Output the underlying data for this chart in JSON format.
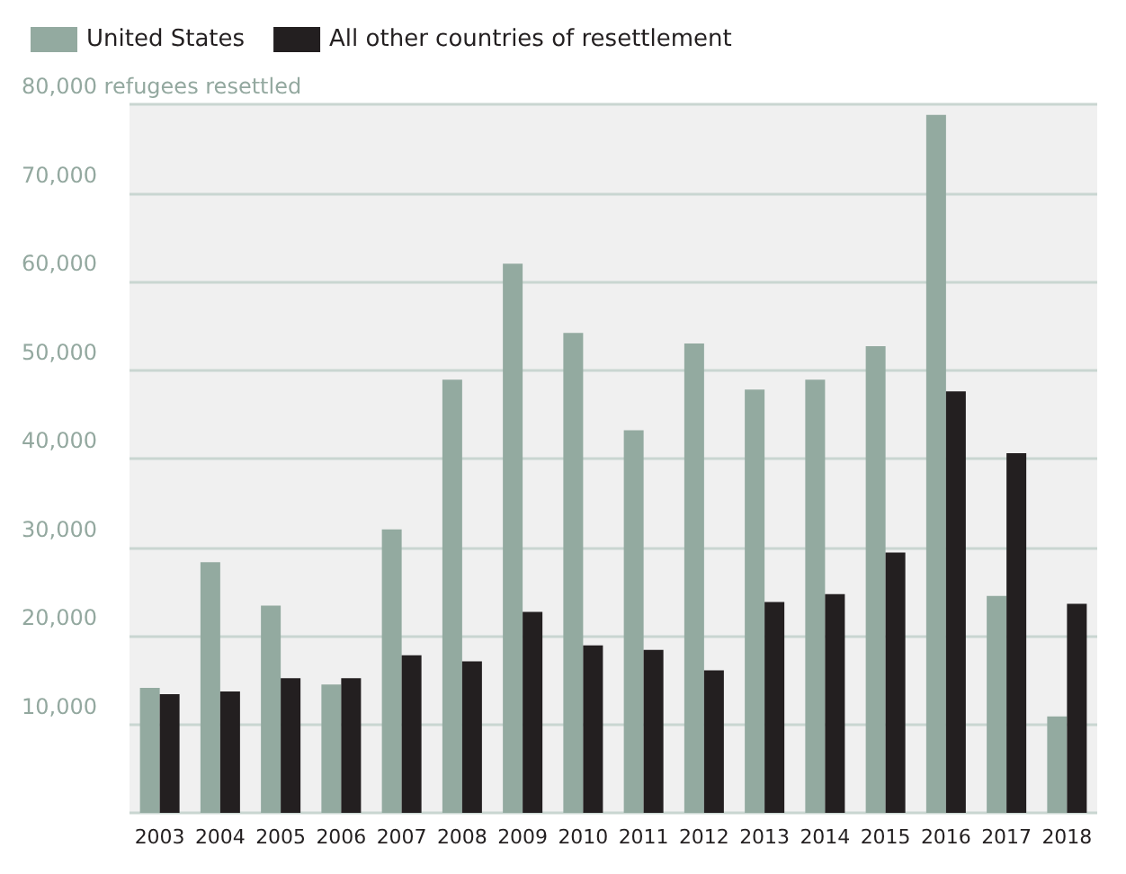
{
  "chart_data": {
    "type": "bar",
    "categories": [
      "2003",
      "2004",
      "2005",
      "2006",
      "2007",
      "2008",
      "2009",
      "2010",
      "2011",
      "2012",
      "2013",
      "2014",
      "2015",
      "2016",
      "2017",
      "2018"
    ],
    "series": [
      {
        "name": "United States",
        "color": "#93aaa0",
        "values": [
          14100,
          28300,
          23400,
          14500,
          32000,
          48900,
          62000,
          54200,
          43200,
          53000,
          47800,
          48900,
          52700,
          78800,
          24500,
          10900
        ]
      },
      {
        "name": "All other countries of resettlement",
        "color": "#231f20",
        "values": [
          13400,
          13700,
          15200,
          15200,
          17800,
          17100,
          22700,
          18900,
          18400,
          16100,
          23800,
          24700,
          29400,
          47600,
          40600,
          23600
        ]
      }
    ],
    "ylim": [
      0,
      80000
    ],
    "yticks": [
      {
        "value": 0,
        "label": null
      },
      {
        "value": 10000,
        "label": "10,000"
      },
      {
        "value": 20000,
        "label": "20,000"
      },
      {
        "value": 30000,
        "label": "30,000"
      },
      {
        "value": 40000,
        "label": "40,000"
      },
      {
        "value": 50000,
        "label": "50,000"
      },
      {
        "value": 60000,
        "label": "60,000"
      },
      {
        "value": 70000,
        "label": "70,000"
      },
      {
        "value": 80000,
        "label": "80,000 refugees resettled"
      }
    ],
    "grid": "y",
    "legend": "top left"
  }
}
